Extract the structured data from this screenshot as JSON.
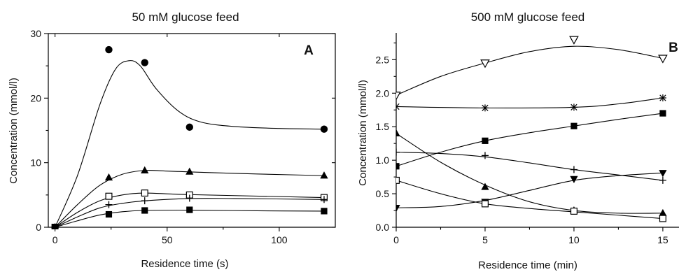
{
  "chart_data": [
    {
      "type": "scatter",
      "title": "50 mM glucose feed",
      "panel_label": "A",
      "xlabel": "Residence time (s)",
      "ylabel": "Concentration (mmol/l)",
      "xlim": [
        -3,
        125
      ],
      "ylim": [
        0,
        30
      ],
      "xticks": [
        0,
        50,
        100
      ],
      "yticks": [
        0,
        10,
        20,
        30
      ],
      "grid": false,
      "series": [
        {
          "marker": "filled-circle",
          "points": [
            [
              0,
              0
            ],
            [
              24,
              27.5
            ],
            [
              40,
              25.5
            ],
            [
              60,
              15.5
            ],
            [
              120,
              15.2
            ]
          ],
          "curve": [
            [
              0,
              0
            ],
            [
              10,
              8
            ],
            [
              20,
              19
            ],
            [
              27,
              24.5
            ],
            [
              33,
              25.8
            ],
            [
              38,
              25
            ],
            [
              45,
              21.5
            ],
            [
              55,
              18
            ],
            [
              65,
              16.3
            ],
            [
              80,
              15.6
            ],
            [
              100,
              15.3
            ],
            [
              120,
              15.2
            ]
          ]
        },
        {
          "marker": "filled-triangle-up",
          "points": [
            [
              0,
              0
            ],
            [
              24,
              7.7
            ],
            [
              40,
              8.8
            ],
            [
              60,
              8.6
            ],
            [
              120,
              8.0
            ]
          ],
          "curve": [
            [
              0,
              0
            ],
            [
              10,
              3.5
            ],
            [
              20,
              6.5
            ],
            [
              30,
              8.2
            ],
            [
              40,
              8.8
            ],
            [
              50,
              8.7
            ],
            [
              70,
              8.45
            ],
            [
              90,
              8.25
            ],
            [
              120,
              8.0
            ]
          ]
        },
        {
          "marker": "open-square",
          "points": [
            [
              0,
              0
            ],
            [
              24,
              4.8
            ],
            [
              40,
              5.3
            ],
            [
              60,
              5.0
            ],
            [
              120,
              4.6
            ]
          ],
          "curve": [
            [
              0,
              0
            ],
            [
              10,
              2.3
            ],
            [
              20,
              4.1
            ],
            [
              30,
              5.0
            ],
            [
              40,
              5.3
            ],
            [
              55,
              5.1
            ],
            [
              80,
              4.9
            ],
            [
              120,
              4.6
            ]
          ]
        },
        {
          "marker": "plus",
          "points": [
            [
              0,
              0
            ],
            [
              24,
              3.5
            ],
            [
              40,
              4.1
            ],
            [
              60,
              4.5
            ],
            [
              120,
              4.3
            ]
          ],
          "curve": [
            [
              0,
              0
            ],
            [
              10,
              1.6
            ],
            [
              20,
              3.0
            ],
            [
              30,
              3.7
            ],
            [
              40,
              4.1
            ],
            [
              60,
              4.45
            ],
            [
              80,
              4.45
            ],
            [
              120,
              4.3
            ]
          ]
        },
        {
          "marker": "filled-square",
          "points": [
            [
              0,
              0
            ],
            [
              24,
              2.0
            ],
            [
              40,
              2.6
            ],
            [
              60,
              2.7
            ],
            [
              120,
              2.5
            ]
          ],
          "curve": [
            [
              0,
              0
            ],
            [
              10,
              1.0
            ],
            [
              20,
              1.9
            ],
            [
              30,
              2.4
            ],
            [
              40,
              2.6
            ],
            [
              60,
              2.65
            ],
            [
              90,
              2.55
            ],
            [
              120,
              2.5
            ]
          ]
        }
      ]
    },
    {
      "type": "scatter",
      "title": "500 mM glucose feed",
      "panel_label": "B",
      "xlabel": "Residence time (min)",
      "ylabel": "Concentration (mmol/l)",
      "xlim": [
        0,
        16.5
      ],
      "ylim": [
        0,
        2.9
      ],
      "xticks": [
        0,
        5,
        10,
        15
      ],
      "yticks": [
        0.0,
        0.5,
        1.0,
        1.5,
        2.0,
        2.5
      ],
      "grid": false,
      "series": [
        {
          "marker": "open-triangle-down",
          "points": [
            [
              0,
              1.97
            ],
            [
              5,
              2.45
            ],
            [
              10,
              2.8
            ],
            [
              15,
              2.52
            ]
          ],
          "curve": [
            [
              0,
              1.97
            ],
            [
              2.5,
              2.25
            ],
            [
              5,
              2.45
            ],
            [
              7.5,
              2.62
            ],
            [
              10,
              2.7
            ],
            [
              12.5,
              2.65
            ],
            [
              15,
              2.52
            ]
          ]
        },
        {
          "marker": "asterisk",
          "points": [
            [
              0,
              1.8
            ],
            [
              5,
              1.78
            ],
            [
              10,
              1.79
            ],
            [
              15,
              1.93
            ]
          ],
          "curve": [
            [
              0,
              1.8
            ],
            [
              5,
              1.78
            ],
            [
              10,
              1.79
            ],
            [
              12.5,
              1.84
            ],
            [
              15,
              1.93
            ]
          ]
        },
        {
          "marker": "filled-square",
          "points": [
            [
              0,
              0.91
            ],
            [
              5,
              1.29
            ],
            [
              10,
              1.51
            ],
            [
              15,
              1.7
            ]
          ],
          "curve": [
            [
              0,
              0.91
            ],
            [
              2.5,
              1.12
            ],
            [
              5,
              1.29
            ],
            [
              7.5,
              1.41
            ],
            [
              10,
              1.51
            ],
            [
              12.5,
              1.61
            ],
            [
              15,
              1.7
            ]
          ]
        },
        {
          "marker": "plus",
          "points": [
            [
              0,
              1.12
            ],
            [
              5,
              1.07
            ],
            [
              10,
              0.86
            ],
            [
              15,
              0.7
            ]
          ],
          "curve": [
            [
              0,
              1.12
            ],
            [
              2.5,
              1.1
            ],
            [
              5,
              1.05
            ],
            [
              7.5,
              0.96
            ],
            [
              10,
              0.86
            ],
            [
              12.5,
              0.78
            ],
            [
              15,
              0.7
            ]
          ]
        },
        {
          "marker": "filled-triangle-up",
          "points": [
            [
              0,
              1.4
            ],
            [
              5,
              0.6
            ],
            [
              10,
              0.25
            ],
            [
              15,
              0.21
            ]
          ],
          "curve": [
            [
              0,
              1.4
            ],
            [
              2.5,
              0.97
            ],
            [
              5,
              0.63
            ],
            [
              7.5,
              0.38
            ],
            [
              10,
              0.25
            ],
            [
              12.5,
              0.21
            ],
            [
              15,
              0.21
            ]
          ]
        },
        {
          "marker": "filled-triangle-down",
          "points": [
            [
              0,
              0.29
            ],
            [
              5,
              0.38
            ],
            [
              10,
              0.72
            ],
            [
              15,
              0.81
            ]
          ],
          "curve": [
            [
              0,
              0.29
            ],
            [
              2.5,
              0.31
            ],
            [
              5,
              0.4
            ],
            [
              7.5,
              0.55
            ],
            [
              10,
              0.7
            ],
            [
              12.5,
              0.77
            ],
            [
              15,
              0.81
            ]
          ]
        },
        {
          "marker": "open-square",
          "points": [
            [
              0,
              0.7
            ],
            [
              5,
              0.35
            ],
            [
              10,
              0.24
            ],
            [
              15,
              0.13
            ]
          ],
          "curve": [
            [
              0,
              0.7
            ],
            [
              2.5,
              0.5
            ],
            [
              5,
              0.35
            ],
            [
              7.5,
              0.28
            ],
            [
              10,
              0.23
            ],
            [
              12.5,
              0.18
            ],
            [
              15,
              0.13
            ]
          ]
        }
      ]
    }
  ]
}
